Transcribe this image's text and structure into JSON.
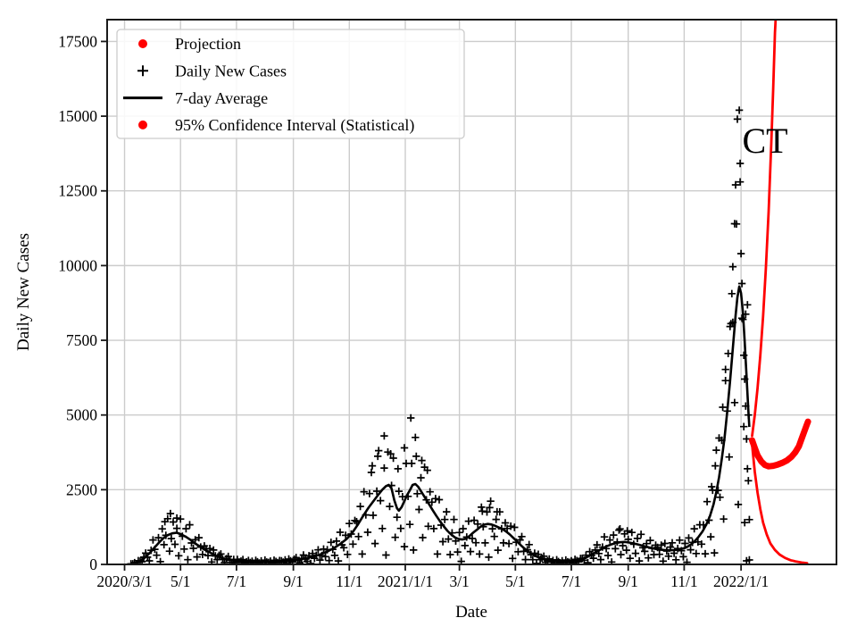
{
  "figure": {
    "xlabel": "Date",
    "ylabel": "Daily New Cases",
    "annotation": "CT",
    "colors": {
      "projection": "#ff0000",
      "data": "#000000",
      "grid": "#cccccc",
      "legend_border": "#cccccc"
    },
    "legend": [
      {
        "marker": "dot",
        "color": "#ff0000",
        "label": "Projection"
      },
      {
        "marker": "plus",
        "color": "#000000",
        "label": "Daily New Cases"
      },
      {
        "marker": "line",
        "color": "#000000",
        "label": "7-day Average"
      },
      {
        "marker": "dot",
        "color": "#ff0000",
        "label": "95% Confidence Interval (Statistical)"
      }
    ]
  },
  "chart_data": {
    "type": "scatter",
    "title": "",
    "xlabel": "Date",
    "ylabel": "Daily New Cases",
    "x_unit": "days since 2020/3/1",
    "xlim": [
      -19,
      776
    ],
    "ylim": [
      0,
      18230
    ],
    "grid": true,
    "legend_position": "upper left",
    "x_ticks": [
      {
        "t": 0,
        "label": "2020/3/1"
      },
      {
        "t": 61,
        "label": "5/1"
      },
      {
        "t": 122,
        "label": "7/1"
      },
      {
        "t": 184,
        "label": "9/1"
      },
      {
        "t": 245,
        "label": "11/1"
      },
      {
        "t": 306,
        "label": "2021/1/1"
      },
      {
        "t": 365,
        "label": "3/1"
      },
      {
        "t": 426,
        "label": "5/1"
      },
      {
        "t": 487,
        "label": "7/1"
      },
      {
        "t": 549,
        "label": "9/1"
      },
      {
        "t": 610,
        "label": "11/1"
      },
      {
        "t": 672,
        "label": "2022/1/1"
      }
    ],
    "y_ticks": [
      0,
      2500,
      5000,
      7500,
      10000,
      12500,
      15000,
      17500
    ],
    "series": [
      {
        "name": "7-day Average",
        "type": "line",
        "color": "#000000",
        "width": 2.6,
        "points": [
          [
            7,
            20
          ],
          [
            12,
            50
          ],
          [
            17,
            110
          ],
          [
            22,
            220
          ],
          [
            27,
            370
          ],
          [
            32,
            540
          ],
          [
            37,
            710
          ],
          [
            42,
            870
          ],
          [
            47,
            980
          ],
          [
            52,
            1040
          ],
          [
            57,
            1060
          ],
          [
            62,
            1000
          ],
          [
            67,
            920
          ],
          [
            72,
            820
          ],
          [
            77,
            700
          ],
          [
            82,
            600
          ],
          [
            87,
            500
          ],
          [
            92,
            420
          ],
          [
            97,
            330
          ],
          [
            102,
            260
          ],
          [
            107,
            210
          ],
          [
            112,
            170
          ],
          [
            117,
            140
          ],
          [
            122,
            120
          ],
          [
            127,
            105
          ],
          [
            134,
            98
          ],
          [
            142,
            92
          ],
          [
            150,
            90
          ],
          [
            158,
            92
          ],
          [
            166,
            100
          ],
          [
            174,
            112
          ],
          [
            182,
            128
          ],
          [
            190,
            165
          ],
          [
            198,
            210
          ],
          [
            206,
            265
          ],
          [
            214,
            340
          ],
          [
            221,
            430
          ],
          [
            228,
            540
          ],
          [
            235,
            680
          ],
          [
            242,
            850
          ],
          [
            248,
            1050
          ],
          [
            254,
            1320
          ],
          [
            260,
            1620
          ],
          [
            266,
            1900
          ],
          [
            272,
            2150
          ],
          [
            277,
            2350
          ],
          [
            281,
            2500
          ],
          [
            285,
            2620
          ],
          [
            288,
            2660
          ],
          [
            291,
            2540
          ],
          [
            294,
            2150
          ],
          [
            297,
            1880
          ],
          [
            299,
            1800
          ],
          [
            302,
            1920
          ],
          [
            305,
            2120
          ],
          [
            308,
            2320
          ],
          [
            311,
            2480
          ],
          [
            314,
            2660
          ],
          [
            317,
            2690
          ],
          [
            320,
            2600
          ],
          [
            324,
            2410
          ],
          [
            328,
            2210
          ],
          [
            332,
            2010
          ],
          [
            336,
            1810
          ],
          [
            340,
            1620
          ],
          [
            344,
            1440
          ],
          [
            348,
            1270
          ],
          [
            352,
            1120
          ],
          [
            356,
            1000
          ],
          [
            360,
            905
          ],
          [
            364,
            850
          ],
          [
            368,
            835
          ],
          [
            372,
            860
          ],
          [
            376,
            950
          ],
          [
            380,
            1060
          ],
          [
            384,
            1160
          ],
          [
            388,
            1260
          ],
          [
            392,
            1330
          ],
          [
            396,
            1355
          ],
          [
            400,
            1335
          ],
          [
            404,
            1290
          ],
          [
            408,
            1235
          ],
          [
            412,
            1180
          ],
          [
            416,
            1100
          ],
          [
            420,
            1000
          ],
          [
            424,
            880
          ],
          [
            428,
            760
          ],
          [
            432,
            640
          ],
          [
            436,
            530
          ],
          [
            440,
            430
          ],
          [
            444,
            350
          ],
          [
            448,
            280
          ],
          [
            452,
            225
          ],
          [
            456,
            185
          ],
          [
            460,
            150
          ],
          [
            465,
            122
          ],
          [
            470,
            105
          ],
          [
            475,
            96
          ],
          [
            480,
            92
          ],
          [
            485,
            97
          ],
          [
            490,
            112
          ],
          [
            495,
            142
          ],
          [
            500,
            192
          ],
          [
            505,
            260
          ],
          [
            510,
            340
          ],
          [
            515,
            430
          ],
          [
            520,
            520
          ],
          [
            525,
            600
          ],
          [
            530,
            662
          ],
          [
            535,
            712
          ],
          [
            540,
            742
          ],
          [
            545,
            752
          ],
          [
            550,
            732
          ],
          [
            555,
            702
          ],
          [
            560,
            662
          ],
          [
            565,
            622
          ],
          [
            570,
            582
          ],
          [
            575,
            542
          ],
          [
            580,
            512
          ],
          [
            585,
            490
          ],
          [
            590,
            478
          ],
          [
            595,
            474
          ],
          [
            600,
            480
          ],
          [
            605,
            502
          ],
          [
            610,
            542
          ],
          [
            614,
            602
          ],
          [
            618,
            682
          ],
          [
            622,
            792
          ],
          [
            626,
            932
          ],
          [
            630,
            1105
          ],
          [
            634,
            1330
          ],
          [
            638,
            1610
          ],
          [
            642,
            2010
          ],
          [
            645,
            2420
          ],
          [
            648,
            2920
          ],
          [
            651,
            3520
          ],
          [
            654,
            4230
          ],
          [
            657,
            5130
          ],
          [
            660,
            6130
          ],
          [
            663,
            7230
          ],
          [
            666,
            8330
          ],
          [
            668,
            8930
          ],
          [
            670,
            9300
          ],
          [
            672,
            9080
          ],
          [
            674,
            8450
          ],
          [
            676,
            7450
          ],
          [
            678,
            6280
          ],
          [
            680,
            5150
          ],
          [
            681,
            4600
          ]
        ]
      },
      {
        "name": "Projection",
        "type": "line",
        "color": "#ff0000",
        "width": 7,
        "points": [
          [
            684,
            4150
          ],
          [
            687,
            3900
          ],
          [
            690,
            3650
          ],
          [
            694,
            3450
          ],
          [
            698,
            3330
          ],
          [
            702,
            3280
          ],
          [
            707,
            3300
          ],
          [
            712,
            3340
          ],
          [
            717,
            3400
          ],
          [
            722,
            3480
          ],
          [
            727,
            3600
          ],
          [
            731,
            3750
          ],
          [
            735,
            3950
          ],
          [
            738,
            4200
          ],
          [
            741,
            4450
          ],
          [
            744,
            4700
          ],
          [
            745,
            4780
          ]
        ]
      },
      {
        "name": "95% CI upper",
        "type": "line",
        "color": "#ff0000",
        "width": 2.8,
        "points": [
          [
            684,
            4300
          ],
          [
            687,
            5000
          ],
          [
            690,
            5900
          ],
          [
            693,
            7000
          ],
          [
            696,
            8300
          ],
          [
            699,
            9900
          ],
          [
            702,
            11800
          ],
          [
            705,
            14100
          ],
          [
            707,
            15900
          ],
          [
            709,
            17800
          ],
          [
            711,
            19000
          ]
        ]
      },
      {
        "name": "95% CI lower",
        "type": "line",
        "color": "#ff0000",
        "width": 2.8,
        "points": [
          [
            684,
            4000
          ],
          [
            687,
            3100
          ],
          [
            690,
            2400
          ],
          [
            693,
            1850
          ],
          [
            696,
            1400
          ],
          [
            700,
            1000
          ],
          [
            704,
            700
          ],
          [
            709,
            480
          ],
          [
            714,
            330
          ],
          [
            720,
            215
          ],
          [
            726,
            140
          ],
          [
            732,
            95
          ],
          [
            738,
            62
          ],
          [
            744,
            42
          ]
        ]
      },
      {
        "name": "Daily New Cases",
        "type": "scatter-plus",
        "color": "#000000",
        "marker_half": 4.2,
        "stroke": 1.7,
        "generate": {
          "from": "7-day Average",
          "t_start": 7,
          "t_end": 680,
          "step": 2,
          "multipliers": [
            1.12,
            0.68,
            1.32,
            0.22,
            1.46,
            0.94,
            0.58,
            1.22,
            1.52,
            0.78,
            0.32,
            1.08,
            1.62,
            0.88,
            0.48,
            1.26,
            0.12,
            1.42,
            0.74,
            1.04,
            1.56,
            0.44,
            0.84,
            1.36,
            0.64,
            1.14,
            0.28,
            1.5,
            0.96,
            0.54,
            1.3,
            0.18,
            1.58,
            0.9,
            0.72,
            1.18,
            0.38,
            1.44,
            1.0,
            0.62,
            1.24
          ]
        },
        "extra_points": [
          [
            44,
            1430
          ],
          [
            50,
            1700
          ],
          [
            57,
            1550
          ],
          [
            270,
            3300
          ],
          [
            276,
            3620
          ],
          [
            283,
            4300
          ],
          [
            290,
            3700
          ],
          [
            298,
            3200
          ],
          [
            305,
            3900
          ],
          [
            312,
            4900
          ],
          [
            318,
            3620
          ],
          [
            324,
            3480
          ],
          [
            330,
            3150
          ],
          [
            390,
            1780
          ],
          [
            398,
            1900
          ],
          [
            406,
            1760
          ],
          [
            540,
            1190
          ],
          [
            548,
            1120
          ],
          [
            640,
            2600
          ],
          [
            644,
            3300
          ],
          [
            648,
            4230
          ],
          [
            652,
            5260
          ],
          [
            655,
            6150
          ],
          [
            658,
            7060
          ],
          [
            660,
            7960
          ],
          [
            662,
            9060
          ],
          [
            663,
            9960
          ],
          [
            665,
            11400
          ],
          [
            666,
            12700
          ],
          [
            668,
            14900
          ],
          [
            670,
            15200
          ],
          [
            671,
            12800
          ],
          [
            672,
            10400
          ],
          [
            673,
            9400
          ],
          [
            674,
            8200
          ],
          [
            675,
            7000
          ],
          [
            676,
            6200
          ],
          [
            676,
            1400
          ],
          [
            677,
            5300
          ],
          [
            678,
            4200
          ],
          [
            678,
            120
          ],
          [
            679,
            3200
          ],
          [
            680,
            2800
          ],
          [
            680,
            5000
          ],
          [
            681,
            1500
          ],
          [
            681,
            150
          ]
        ]
      }
    ]
  }
}
